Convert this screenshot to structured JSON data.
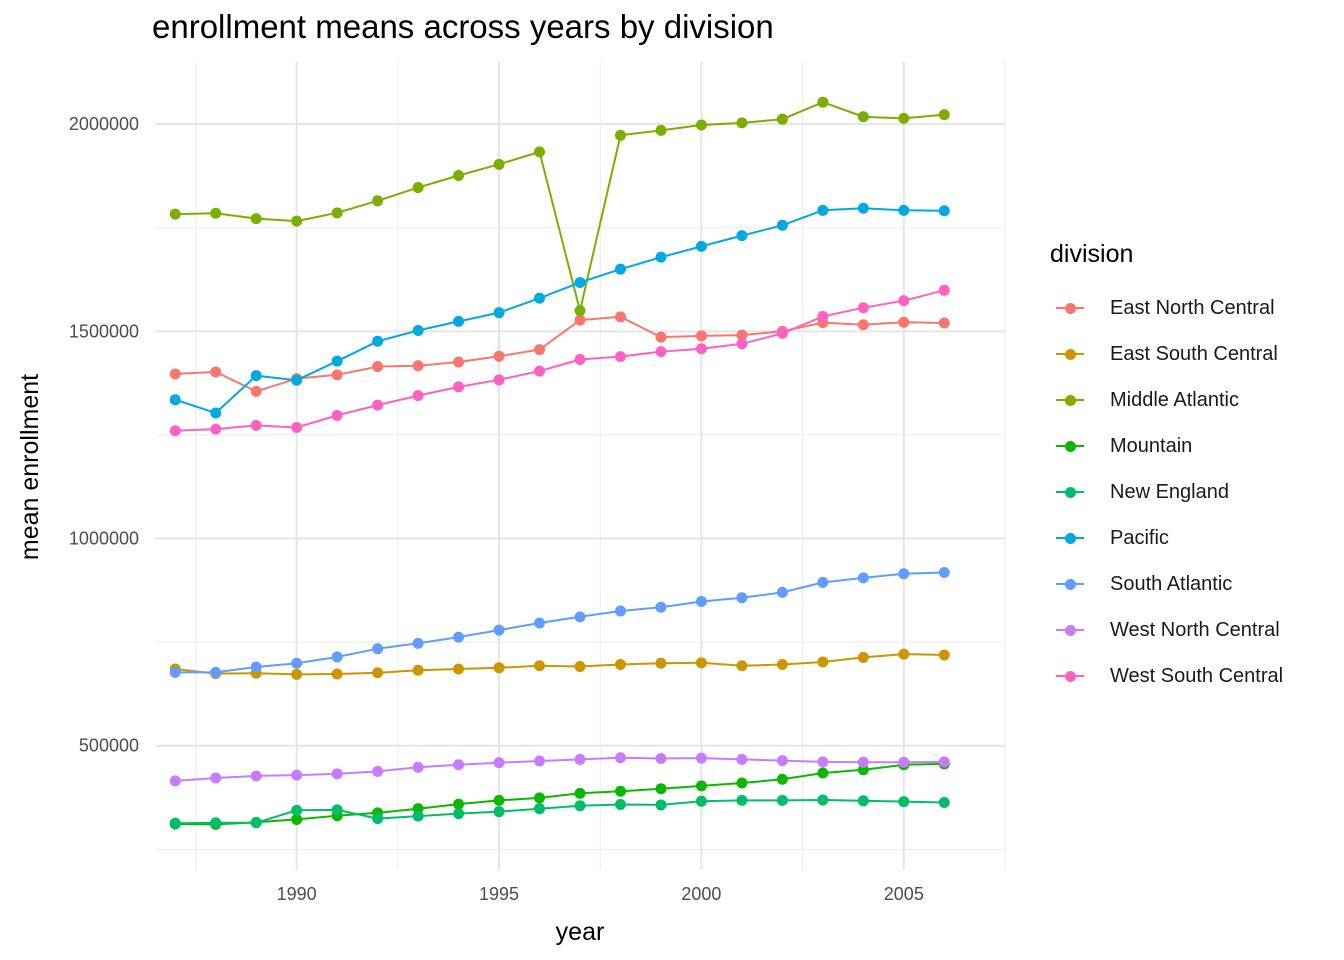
{
  "chart_data": {
    "type": "line",
    "title": "enrollment means across years by division",
    "xlabel": "year",
    "ylabel": "mean enrollment",
    "xlim": [
      1986.5,
      2007.5
    ],
    "ylim": [
      200000,
      2150000
    ],
    "x_ticks": [
      1990,
      1995,
      2000,
      2005
    ],
    "y_ticks": [
      500000,
      1000000,
      1500000,
      2000000
    ],
    "grid": true,
    "legend": {
      "title": "division",
      "position": "right"
    },
    "x": [
      1987,
      1988,
      1989,
      1990,
      1991,
      1992,
      1993,
      1994,
      1995,
      1996,
      1997,
      1998,
      1999,
      2000,
      2001,
      2002,
      2003,
      2004,
      2005,
      2006
    ],
    "series": [
      {
        "name": "East North Central",
        "color": "#F8766D",
        "values": [
          1397000,
          1402000,
          1355000,
          1386000,
          1395000,
          1415000,
          1417000,
          1426000,
          1440000,
          1456000,
          1527000,
          1535000,
          1486000,
          1489000,
          1491000,
          1500000,
          1521000,
          1516000,
          1522000,
          1520000
        ]
      },
      {
        "name": "East South Central",
        "color": "#CD9600",
        "values": [
          685000,
          674000,
          675000,
          672000,
          673000,
          676000,
          682000,
          685000,
          688000,
          693000,
          691000,
          696000,
          699000,
          700000,
          693000,
          696000,
          702000,
          713000,
          721000,
          719000
        ]
      },
      {
        "name": "Middle Atlantic",
        "color": "#7CAE00",
        "values": [
          1783000,
          1785000,
          1772000,
          1766000,
          1786000,
          1815000,
          1847000,
          1876000,
          1903000,
          1933000,
          1550000,
          1973000,
          1985000,
          1998000,
          2003000,
          2012000,
          2053000,
          2018000,
          2014000,
          2023000
        ]
      },
      {
        "name": "Mountain",
        "color": "#0CB702",
        "values": [
          311000,
          310000,
          315000,
          322000,
          331000,
          338000,
          348000,
          359000,
          368000,
          374000,
          385000,
          390000,
          396000,
          403000,
          410000,
          419000,
          434000,
          442000,
          454000,
          456000
        ]
      },
      {
        "name": "New England",
        "color": "#00BE67",
        "values": [
          313000,
          314000,
          314000,
          344000,
          345000,
          324000,
          330000,
          336000,
          341000,
          348000,
          355000,
          358000,
          357000,
          366000,
          368000,
          368000,
          369000,
          367000,
          365000,
          363000
        ]
      },
      {
        "name": "Pacific",
        "color": "#00A9E0",
        "values": [
          1335000,
          1303000,
          1393000,
          1382000,
          1428000,
          1476000,
          1502000,
          1524000,
          1545000,
          1580000,
          1618000,
          1650000,
          1679000,
          1705000,
          1731000,
          1756000,
          1792000,
          1797000,
          1792000,
          1791000
        ]
      },
      {
        "name": "South Atlantic",
        "color": "#619CFF",
        "values": [
          677000,
          677000,
          690000,
          699000,
          714000,
          734000,
          747000,
          762000,
          779000,
          796000,
          811000,
          825000,
          834000,
          848000,
          857000,
          870000,
          894000,
          905000,
          915000,
          918000
        ]
      },
      {
        "name": "West North Central",
        "color": "#C77CFF",
        "values": [
          415000,
          422000,
          427000,
          429000,
          432000,
          438000,
          448000,
          454000,
          459000,
          463000,
          467000,
          471000,
          469000,
          470000,
          467000,
          464000,
          461000,
          460000,
          460000,
          461000
        ]
      },
      {
        "name": "West South Central",
        "color": "#FF61C3",
        "values": [
          1260000,
          1264000,
          1273000,
          1268000,
          1297000,
          1322000,
          1345000,
          1366000,
          1383000,
          1404000,
          1432000,
          1439000,
          1451000,
          1458000,
          1470000,
          1495000,
          1536000,
          1557000,
          1574000,
          1599000
        ]
      }
    ]
  }
}
